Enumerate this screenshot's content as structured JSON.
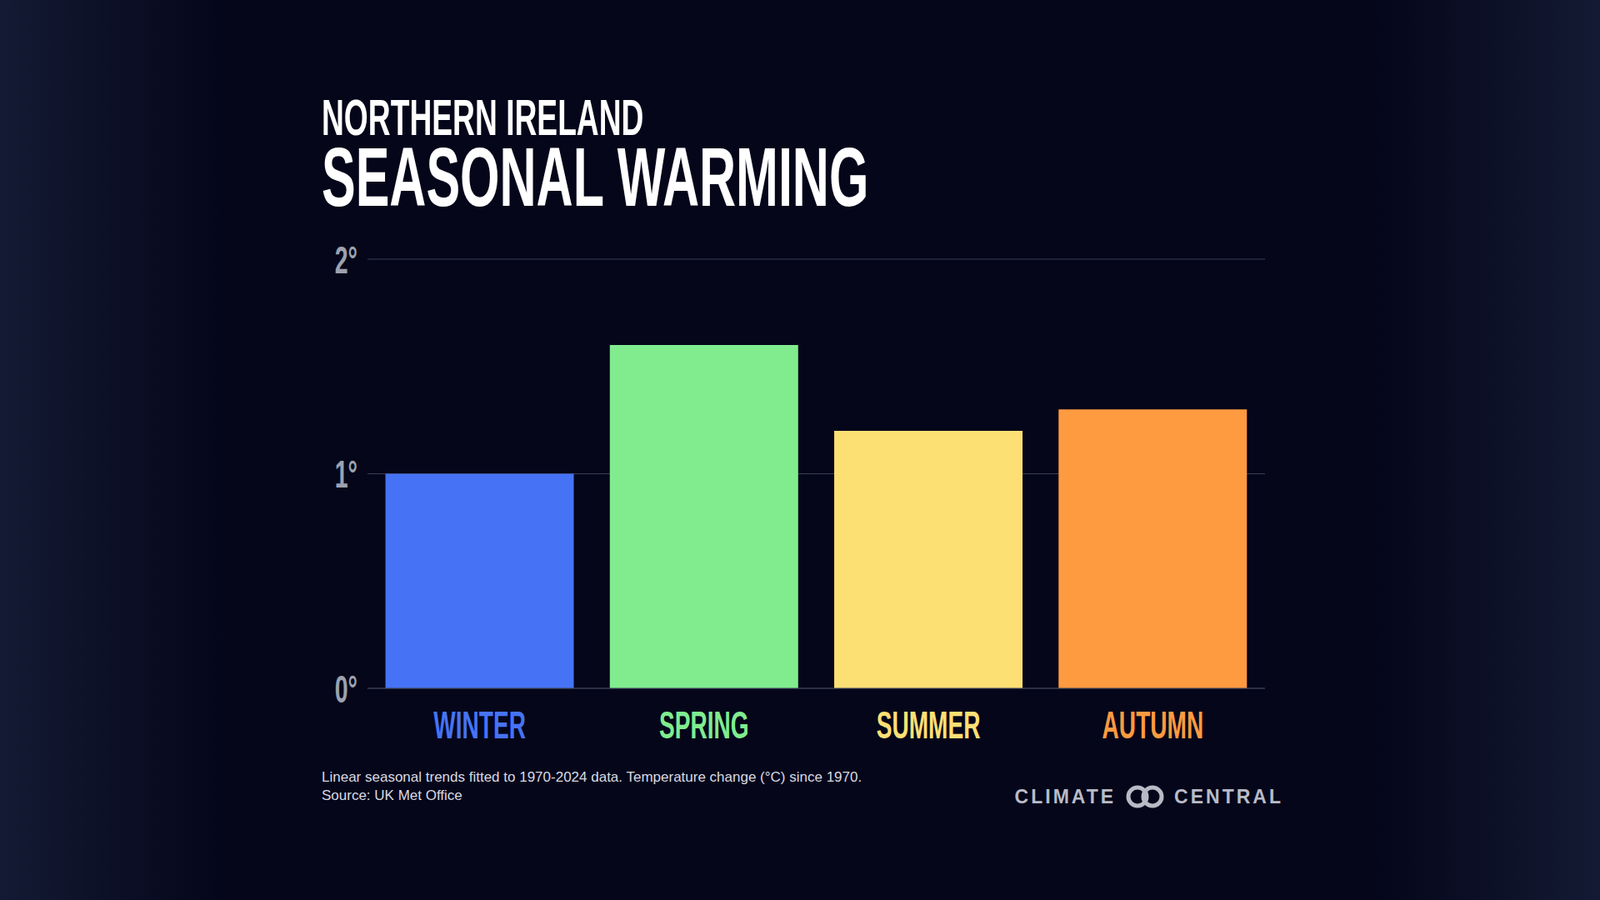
{
  "chart_data": {
    "type": "bar",
    "subtitle": "NORTHERN IRELAND",
    "title": "SEASONAL WARMING",
    "categories": [
      "WINTER",
      "SPRING",
      "SUMMER",
      "AUTUMN"
    ],
    "values": [
      1,
      1.6,
      1.2,
      1.3
    ],
    "colors": [
      "#4673f5",
      "#80ec8e",
      "#fde074",
      "#fe9a40"
    ],
    "ylim": [
      0,
      2
    ],
    "yticks": [
      {
        "value": 0,
        "label": "0°"
      },
      {
        "value": 1,
        "label": "1°"
      },
      {
        "value": 2,
        "label": "2°"
      }
    ],
    "grid": true,
    "caption": "Linear seasonal trends fitted to 1970-2024 data. Temperature change (°C) since 1970.",
    "source": "Source: UK Met Office",
    "logo": "CLIMATE CENTRAL"
  }
}
